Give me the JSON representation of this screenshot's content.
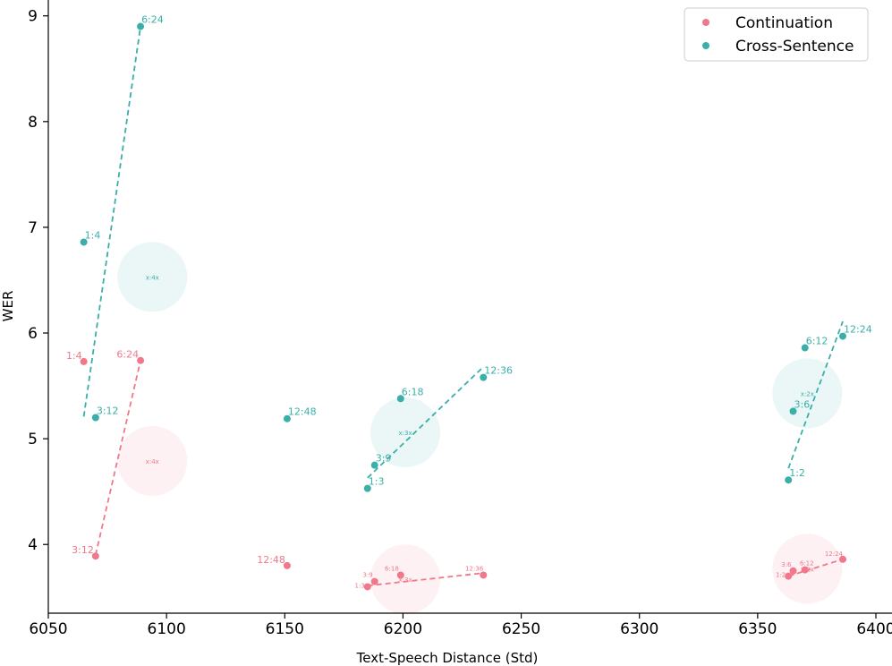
{
  "chart_data": {
    "type": "scatter",
    "title": "",
    "xlabel": "Text-Speech Distance (Std)",
    "ylabel": "WER",
    "xlim": [
      6050,
      6400
    ],
    "ylim": [
      3.35,
      9.15
    ],
    "xticks": [
      "6050",
      "6100",
      "6150",
      "6200",
      "6250",
      "6300",
      "6350",
      "6400"
    ],
    "yticks": [
      "4",
      "5",
      "6",
      "7",
      "8",
      "9"
    ],
    "legend": {
      "position": "top-right"
    },
    "series": [
      {
        "name": "Continuation",
        "color": "#f0788a",
        "points": [
          {
            "label": "1:4",
            "x": 6065,
            "y": 5.73
          },
          {
            "label": "3:12",
            "x": 6070,
            "y": 3.89
          },
          {
            "label": "6:24",
            "x": 6089,
            "y": 5.74
          },
          {
            "label": "12:48",
            "x": 6151,
            "y": 3.8
          },
          {
            "label": "1:3",
            "x": 6185,
            "y": 3.6
          },
          {
            "label": "3:9",
            "x": 6188,
            "y": 3.65
          },
          {
            "label": "6:18",
            "x": 6199,
            "y": 3.71
          },
          {
            "label": "12:36",
            "x": 6234,
            "y": 3.71
          },
          {
            "label": "1:2",
            "x": 6363,
            "y": 3.7
          },
          {
            "label": "3:6",
            "x": 6365,
            "y": 3.75
          },
          {
            "label": "6:12",
            "x": 6370,
            "y": 3.76
          },
          {
            "label": "12:24",
            "x": 6386,
            "y": 3.86
          }
        ],
        "fits": [
          {
            "x": [
              6070,
              6089
            ],
            "y": [
              3.9,
              5.74
            ]
          },
          {
            "x": [
              6185,
              6234
            ],
            "y": [
              3.61,
              3.73
            ]
          },
          {
            "x": [
              6363,
              6386
            ],
            "y": [
              3.7,
              3.86
            ]
          }
        ],
        "centroids": [
          {
            "label": "x:4x",
            "x": 6094,
            "y": 4.79
          },
          {
            "label": "x:3x",
            "x": 6201,
            "y": 3.67
          },
          {
            "label": "x:2x",
            "x": 6371,
            "y": 3.77
          }
        ]
      },
      {
        "name": "Cross-Sentence",
        "color": "#3aafa9",
        "points": [
          {
            "label": "1:4",
            "x": 6065,
            "y": 6.86
          },
          {
            "label": "3:12",
            "x": 6070,
            "y": 5.2
          },
          {
            "label": "6:24",
            "x": 6089,
            "y": 8.9
          },
          {
            "label": "12:48",
            "x": 6151,
            "y": 5.19
          },
          {
            "label": "1:3",
            "x": 6185,
            "y": 4.53
          },
          {
            "label": "3:9",
            "x": 6188,
            "y": 4.75
          },
          {
            "label": "6:18",
            "x": 6199,
            "y": 5.38
          },
          {
            "label": "12:36",
            "x": 6234,
            "y": 5.58
          },
          {
            "label": "1:2",
            "x": 6363,
            "y": 4.61
          },
          {
            "label": "3:6",
            "x": 6365,
            "y": 5.26
          },
          {
            "label": "6:12",
            "x": 6370,
            "y": 5.86
          },
          {
            "label": "12:24",
            "x": 6386,
            "y": 5.97
          }
        ],
        "fits": [
          {
            "x": [
              6065,
              6089
            ],
            "y": [
              5.21,
              8.9
            ]
          },
          {
            "x": [
              6185,
              6234
            ],
            "y": [
              4.63,
              5.68
            ]
          },
          {
            "x": [
              6363,
              6386
            ],
            "y": [
              4.72,
              6.11
            ]
          }
        ],
        "centroids": [
          {
            "label": "x:4x",
            "x": 6094,
            "y": 6.53
          },
          {
            "label": "x:3x",
            "x": 6201,
            "y": 5.06
          },
          {
            "label": "x:2x",
            "x": 6371,
            "y": 5.43
          }
        ]
      }
    ]
  }
}
